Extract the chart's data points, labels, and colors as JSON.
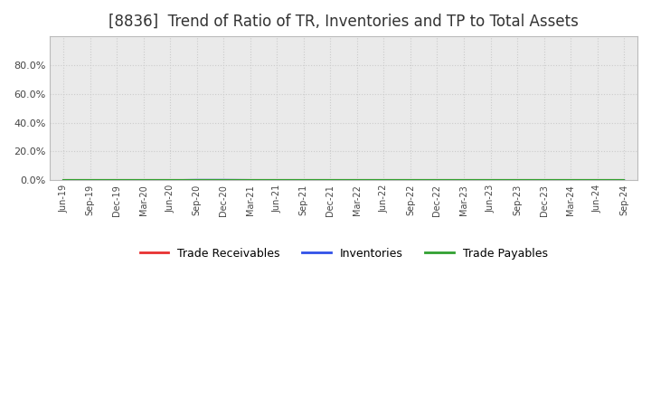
{
  "title": "[8836]  Trend of Ratio of TR, Inventories and TP to Total Assets",
  "title_fontsize": 12,
  "x_labels": [
    "Jun-19",
    "Sep-19",
    "Dec-19",
    "Mar-20",
    "Jun-20",
    "Sep-20",
    "Dec-20",
    "Mar-21",
    "Jun-21",
    "Sep-21",
    "Dec-21",
    "Mar-22",
    "Jun-22",
    "Sep-22",
    "Dec-22",
    "Mar-23",
    "Jun-23",
    "Sep-23",
    "Dec-23",
    "Mar-24",
    "Jun-24",
    "Sep-24"
  ],
  "trade_receivables": [
    0.0,
    0.0,
    0.0,
    0.0,
    0.0,
    0.0,
    0.0,
    0.0,
    0.0,
    0.0,
    0.0,
    0.0,
    0.0,
    0.0,
    0.0,
    0.0,
    0.0,
    0.0,
    0.0,
    0.0,
    0.0,
    0.0
  ],
  "inventories": [
    0.0,
    0.0,
    0.0,
    0.0,
    0.0,
    0.002,
    0.002,
    0.001,
    0.0,
    0.0,
    0.0,
    0.0,
    0.0,
    0.0,
    0.0,
    0.0,
    0.0,
    0.0,
    0.0,
    0.0,
    0.001,
    0.0
  ],
  "trade_payables": [
    0.001,
    0.001,
    0.001,
    0.001,
    0.001,
    0.001,
    0.001,
    0.001,
    0.001,
    0.001,
    0.001,
    0.001,
    0.001,
    0.001,
    0.001,
    0.001,
    0.001,
    0.001,
    0.001,
    0.001,
    0.001,
    0.001
  ],
  "color_tr": "#e83030",
  "color_inv": "#3050e8",
  "color_tp": "#30a030",
  "ylim": [
    0.0,
    1.0
  ],
  "yticks": [
    0.0,
    0.2,
    0.4,
    0.6,
    0.8
  ],
  "background_color": "#ffffff",
  "plot_bg_color": "#eaeaea",
  "grid_color": "#cccccc",
  "legend_labels": [
    "Trade Receivables",
    "Inventories",
    "Trade Payables"
  ]
}
